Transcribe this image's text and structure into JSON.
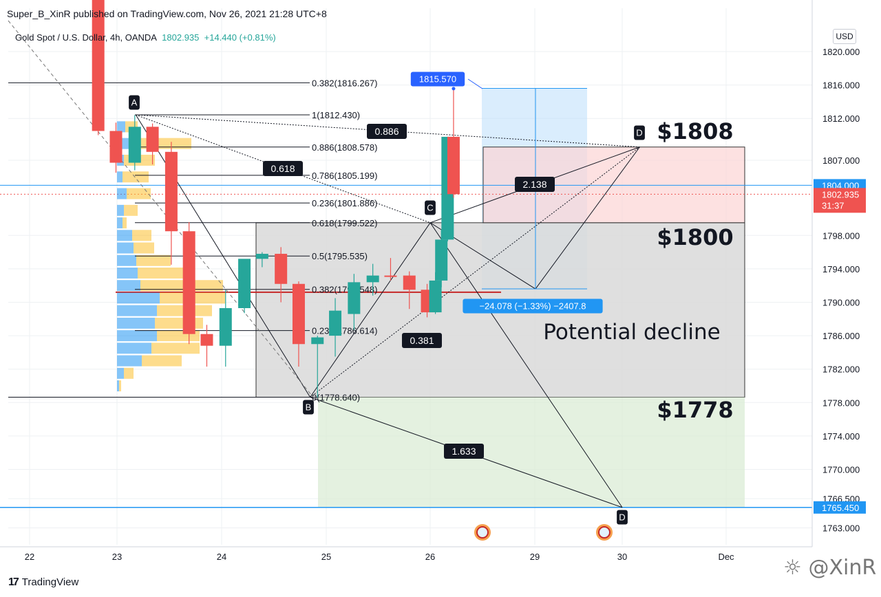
{
  "header": {
    "published": "Super_B_XinR published on TradingView.com, Nov 26, 2021 21:28 UTC+8",
    "symbol": "Gold Spot / U.S. Dollar, 4h, OANDA",
    "price": "1802.935",
    "change": "+14.440 (+0.81%)",
    "currency": "USD"
  },
  "footer": {
    "logo_icon": "17",
    "logo_text": "TradingView",
    "watermark": "@XinR"
  },
  "colors": {
    "up": "#26a69a",
    "down": "#ef5350",
    "accent": "#2962ff",
    "hline": "#2196f3"
  },
  "chart_data": {
    "type": "candlestick",
    "title": "Gold Spot / U.S. Dollar, 4h, OANDA",
    "x_ticks": [
      "22",
      "23",
      "24",
      "25",
      "26",
      "29",
      "30",
      "Dec"
    ],
    "y_ticks": [
      "1820.000",
      "1816.000",
      "1812.000",
      "1807.000",
      "1798.000",
      "1794.000",
      "1790.000",
      "1786.000",
      "1782.000",
      "1778.000",
      "1774.000",
      "1770.000",
      "1766.500",
      "1763.000"
    ],
    "ylim": [
      1761.5,
      1823.0
    ],
    "price_labels": [
      {
        "text": "1804.000",
        "value": 1804.0,
        "kind": "hline"
      },
      {
        "text": "1802.935",
        "value": 1802.935,
        "kind": "last"
      },
      {
        "text": "31:37",
        "value": 1801.5,
        "kind": "timer"
      },
      {
        "text": "1765.450",
        "value": 1765.45,
        "kind": "hline"
      }
    ],
    "candles": [
      {
        "x": 22.82,
        "o": 1830.0,
        "h": 1833.0,
        "l": 1810.0,
        "c": 1810.5
      },
      {
        "x": 22.99,
        "o": 1810.5,
        "h": 1811.5,
        "l": 1805.5,
        "c": 1806.7
      },
      {
        "x": 23.17,
        "o": 1806.7,
        "h": 1812.4,
        "l": 1805.8,
        "c": 1811.0
      },
      {
        "x": 23.34,
        "o": 1811.0,
        "h": 1811.4,
        "l": 1806.5,
        "c": 1808.0
      },
      {
        "x": 23.52,
        "o": 1808.0,
        "h": 1809.2,
        "l": 1794.5,
        "c": 1798.5
      },
      {
        "x": 23.69,
        "o": 1798.5,
        "h": 1799.6,
        "l": 1785.0,
        "c": 1786.2
      },
      {
        "x": 23.86,
        "o": 1786.2,
        "h": 1787.3,
        "l": 1782.3,
        "c": 1784.8
      },
      {
        "x": 24.04,
        "o": 1784.8,
        "h": 1791.5,
        "l": 1782.3,
        "c": 1789.3
      },
      {
        "x": 24.22,
        "o": 1789.3,
        "h": 1794.8,
        "l": 1788.7,
        "c": 1795.2
      },
      {
        "x": 24.39,
        "o": 1795.2,
        "h": 1796.0,
        "l": 1794.2,
        "c": 1795.8
      },
      {
        "x": 24.57,
        "o": 1795.8,
        "h": 1796.6,
        "l": 1790.0,
        "c": 1792.2
      },
      {
        "x": 24.74,
        "o": 1792.2,
        "h": 1792.5,
        "l": 1782.3,
        "c": 1785.0
      },
      {
        "x": 24.92,
        "o": 1785.0,
        "h": 1786.0,
        "l": 1778.6,
        "c": 1785.8
      },
      {
        "x": 25.09,
        "o": 1786.0,
        "h": 1790.5,
        "l": 1783.5,
        "c": 1789.0
      },
      {
        "x": 25.27,
        "o": 1788.6,
        "h": 1793.4,
        "l": 1786.7,
        "c": 1792.4
      },
      {
        "x": 25.45,
        "o": 1792.4,
        "h": 1794.6,
        "l": 1790.8,
        "c": 1793.2
      },
      {
        "x": 25.62,
        "o": 1793.2,
        "h": 1795.3,
        "l": 1792.6,
        "c": 1793.1
      },
      {
        "x": 25.8,
        "o": 1793.2,
        "h": 1793.7,
        "l": 1789.2,
        "c": 1791.5
      },
      {
        "x": 25.97,
        "o": 1791.5,
        "h": 1792.2,
        "l": 1788.2,
        "c": 1788.8
      },
      {
        "x": 26.15,
        "o": 1788.8,
        "h": 1793.6,
        "l": 1788.6,
        "c": 1792.6
      },
      {
        "x": 26.32,
        "o": 1792.6,
        "h": 1798.7,
        "l": 1791.8,
        "c": 1797.5
      },
      {
        "x": 26.5,
        "o": 1797.5,
        "h": 1809.8,
        "l": 1797.3,
        "c": 1809.8
      },
      {
        "x": 26.67,
        "o": 1809.8,
        "h": 1815.57,
        "l": 1802.5,
        "c": 1802.935
      }
    ],
    "volume_profile": [
      {
        "price": 1811.0,
        "up": 12,
        "down": 18
      },
      {
        "price": 1809.0,
        "up": 20,
        "down": 88
      },
      {
        "price": 1807.0,
        "up": 10,
        "down": 45
      },
      {
        "price": 1805.0,
        "up": 8,
        "down": 38
      },
      {
        "price": 1803.0,
        "up": 14,
        "down": 35
      },
      {
        "price": 1801.0,
        "up": 10,
        "down": 20
      },
      {
        "price": 1799.5,
        "up": 8,
        "down": 6
      },
      {
        "price": 1798.0,
        "up": 22,
        "down": 28
      },
      {
        "price": 1796.5,
        "up": 24,
        "down": 30
      },
      {
        "price": 1795.0,
        "up": 28,
        "down": 50
      },
      {
        "price": 1793.5,
        "up": 30,
        "down": 70
      },
      {
        "price": 1792.0,
        "up": 34,
        "down": 120
      },
      {
        "price": 1790.5,
        "up": 62,
        "down": 95
      },
      {
        "price": 1789.0,
        "up": 58,
        "down": 80
      },
      {
        "price": 1787.5,
        "up": 55,
        "down": 70
      },
      {
        "price": 1786.0,
        "up": 58,
        "down": 62
      },
      {
        "price": 1784.5,
        "up": 50,
        "down": 70
      },
      {
        "price": 1783.0,
        "up": 36,
        "down": 58
      },
      {
        "price": 1781.5,
        "up": 10,
        "down": 14
      },
      {
        "price": 1780.0,
        "up": 3,
        "down": 3
      }
    ],
    "fib_levels": [
      {
        "label": "0.382(1816.267)",
        "value": 1816.267
      },
      {
        "label": "1(1812.430)",
        "value": 1812.43
      },
      {
        "label": "0.886(1808.578)",
        "value": 1808.578
      },
      {
        "label": "0.786(1805.199)",
        "value": 1805.199
      },
      {
        "label": "0.236(1801.886)",
        "value": 1801.886
      },
      {
        "label": "0.618(1799.522)",
        "value": 1799.522
      },
      {
        "label": "0.5(1795.535)",
        "value": 1795.535
      },
      {
        "label": "0.382(1791.548)",
        "value": 1791.548
      },
      {
        "label": "0.236(1786.614)",
        "value": 1786.614
      },
      {
        "label": "0(1778.640)",
        "value": 1778.64
      }
    ],
    "pattern_points": [
      {
        "label": "A",
        "x": 23.18,
        "y": 1812.43
      },
      {
        "label": "B",
        "x": 24.85,
        "y": 1778.64
      },
      {
        "label": "C",
        "x": 26.0,
        "y": 1799.52
      },
      {
        "label": "D",
        "x": 30.2,
        "y": 1808.58
      },
      {
        "label": "D",
        "x": 30.0,
        "y": 1765.45
      }
    ],
    "ratio_labels": [
      "0.886",
      "0.618",
      "0.381",
      "1.633",
      "2.138"
    ],
    "measure": {
      "top": "1815.570",
      "change": "−24.078 (−1.33%) −2407.8"
    },
    "annotations": [
      "$1808",
      "$1800",
      "$1778",
      "Potential decline"
    ]
  }
}
